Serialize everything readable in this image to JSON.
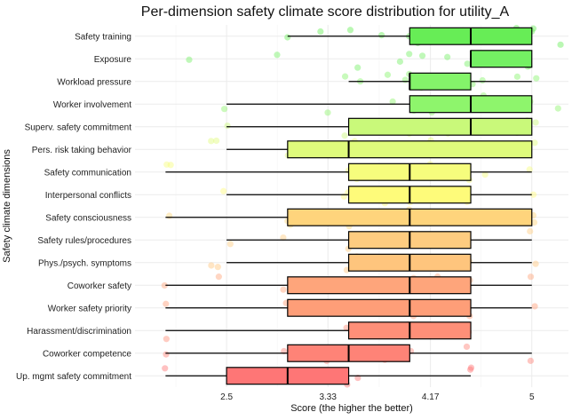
{
  "chart_data": {
    "type": "boxplot",
    "title": "Per-dimension safety climate score distribution for utility_A",
    "xlabel": "Score (the higher the better)",
    "ylabel": "Safety climate dimensions",
    "xlim": [
      1.75,
      5.3
    ],
    "xticks": [
      2.5,
      3.33,
      4.17,
      5
    ],
    "xtick_labels": [
      "2.5",
      "3.33",
      "4.17",
      "5"
    ],
    "series": [
      {
        "name": "Safety training",
        "min": 3.0,
        "q1": 4.0,
        "median": 4.5,
        "q3": 5.0,
        "max": 5.0,
        "color": "#67ed56",
        "points": [
          3.0,
          3.3,
          4.0,
          4.1,
          4.5,
          4.6,
          5.0,
          5.0,
          3.5,
          4.2,
          4.9,
          5.2,
          3.8,
          4.4
        ]
      },
      {
        "name": "Exposure",
        "min": 4.5,
        "q1": 4.5,
        "median": 4.5,
        "q3": 5.0,
        "max": 5.0,
        "color": "#74f063",
        "points": [
          2.2,
          2.9,
          3.6,
          4.0,
          4.1,
          4.5,
          4.6,
          5.0,
          5.0,
          4.7,
          4.3,
          3.9
        ]
      },
      {
        "name": "Workload pressure",
        "min": 3.5,
        "q1": 4.0,
        "median": 4.0,
        "q3": 4.5,
        "max": 5.0,
        "color": "#84f46a",
        "points": [
          3.5,
          4.0,
          4.0,
          4.5,
          5.0,
          3.6,
          4.1,
          4.6,
          4.9,
          3.8
        ]
      },
      {
        "name": "Worker involvement",
        "min": 2.5,
        "q1": 4.0,
        "median": 4.5,
        "q3": 5.0,
        "max": 5.0,
        "color": "#8ef56c",
        "points": [
          2.5,
          3.3,
          4.0,
          4.5,
          4.6,
          5.0,
          5.0,
          5.2,
          4.2,
          3.9
        ]
      },
      {
        "name": "Superv. safety commitment",
        "min": 2.5,
        "q1": 3.5,
        "median": 4.5,
        "q3": 5.0,
        "max": 5.0,
        "color": "#c9f97a",
        "points": [
          2.5,
          3.5,
          4.0,
          4.5,
          4.6,
          5.0,
          5.0,
          3.6,
          4.3,
          4.9
        ]
      },
      {
        "name": "Pers. risk taking behavior",
        "min": 2.5,
        "q1": 3.0,
        "median": 3.5,
        "q3": 5.0,
        "max": 5.0,
        "color": "#dffb7c",
        "points": [
          2.4,
          2.45,
          3.0,
          3.5,
          3.55,
          4.0,
          4.5,
          5.0,
          5.0,
          4.2
        ]
      },
      {
        "name": "Safety communication",
        "min": 2.0,
        "q1": 3.5,
        "median": 4.0,
        "q3": 4.5,
        "max": 5.0,
        "color": "#f6fd7d",
        "points": [
          2.0,
          2.05,
          3.5,
          4.0,
          4.0,
          4.5,
          4.6,
          5.0,
          3.6,
          4.2
        ]
      },
      {
        "name": "Interpersonal conflicts",
        "min": 2.5,
        "q1": 3.5,
        "median": 4.0,
        "q3": 4.5,
        "max": 5.0,
        "color": "#fefb7a",
        "points": [
          2.5,
          3.5,
          3.5,
          4.0,
          4.0,
          4.5,
          5.0,
          4.1,
          3.8
        ]
      },
      {
        "name": "Safety consciousness",
        "min": 2.0,
        "q1": 3.0,
        "median": 4.0,
        "q3": 5.0,
        "max": 5.0,
        "color": "#fed47c",
        "points": [
          2.0,
          3.0,
          3.0,
          3.5,
          4.0,
          4.0,
          4.5,
          5.0,
          5.0,
          4.2
        ]
      },
      {
        "name": "Safety rules/procedures",
        "min": 2.5,
        "q1": 3.5,
        "median": 4.0,
        "q3": 4.5,
        "max": 5.0,
        "color": "#fecc80",
        "points": [
          2.5,
          3.0,
          3.5,
          4.0,
          4.0,
          4.5,
          5.0,
          4.2,
          3.7
        ]
      },
      {
        "name": "Phys./psych. symptoms",
        "min": 2.5,
        "q1": 3.5,
        "median": 4.0,
        "q3": 4.5,
        "max": 5.0,
        "color": "#fec57d",
        "points": [
          2.4,
          2.45,
          3.5,
          4.0,
          4.0,
          4.5,
          5.0,
          3.6,
          4.3
        ]
      },
      {
        "name": "Coworker safety",
        "min": 2.0,
        "q1": 3.0,
        "median": 4.0,
        "q3": 4.5,
        "max": 5.0,
        "color": "#fea57b",
        "points": [
          2.0,
          2.45,
          3.0,
          4.0,
          4.0,
          4.5,
          5.0,
          3.4,
          4.2
        ]
      },
      {
        "name": "Worker safety priority",
        "min": 2.0,
        "q1": 3.0,
        "median": 4.0,
        "q3": 4.5,
        "max": 5.0,
        "color": "#fe9e78",
        "points": [
          2.0,
          3.0,
          3.0,
          4.0,
          4.0,
          4.5,
          5.0,
          3.6,
          4.2
        ]
      },
      {
        "name": "Harassment/discrimination",
        "min": 2.0,
        "q1": 3.5,
        "median": 4.0,
        "q3": 4.5,
        "max": 4.5,
        "color": "#fe8f78",
        "points": [
          2.0,
          3.5,
          4.0,
          3.95,
          4.0,
          4.5,
          4.5,
          3.7,
          4.2
        ]
      },
      {
        "name": "Coworker competence",
        "min": 2.0,
        "q1": 3.0,
        "median": 3.5,
        "q3": 4.0,
        "max": 5.0,
        "color": "#fe8377",
        "points": [
          2.0,
          3.0,
          3.5,
          3.5,
          4.0,
          4.5,
          5.0,
          3.3,
          3.8
        ]
      },
      {
        "name": "Up. mgmt safety commitment",
        "min": 2.0,
        "q1": 2.5,
        "median": 3.0,
        "q3": 3.5,
        "max": 4.5,
        "color": "#fe7676",
        "points": [
          2.0,
          2.5,
          3.0,
          3.0,
          3.5,
          3.55,
          4.5,
          4.5,
          2.8,
          3.2
        ]
      }
    ]
  }
}
